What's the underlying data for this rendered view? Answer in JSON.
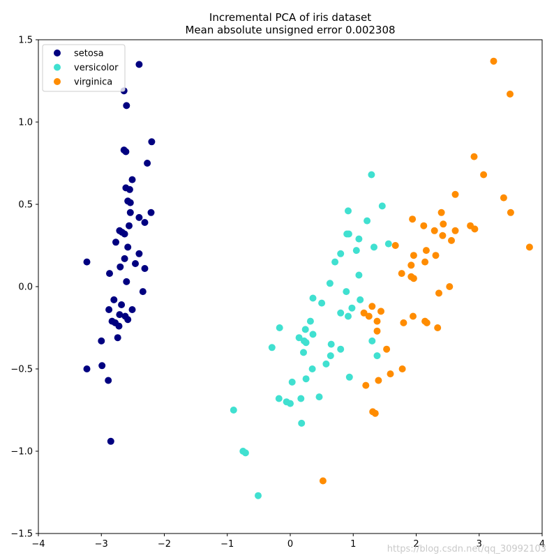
{
  "chart_data": {
    "type": "scatter",
    "title": "Incremental PCA of iris dataset",
    "subtitle": "Mean absolute unsigned error 0.002308",
    "xlabel": "",
    "ylabel": "",
    "xlim": [
      -4,
      4
    ],
    "ylim": [
      -1.5,
      1.5
    ],
    "xticks": [
      -4,
      -3,
      -2,
      -1,
      0,
      1,
      2,
      3,
      4
    ],
    "yticks": [
      1.5,
      1.0,
      0.5,
      0.0,
      -0.5,
      -1.0,
      -1.5
    ],
    "xtick_labels": [
      "−4",
      "−3",
      "−2",
      "−1",
      "0",
      "1",
      "2",
      "3",
      "4"
    ],
    "ytick_labels": [
      "1.5",
      "1.0",
      "0.5",
      "0.0",
      "−0.5",
      "−1.0",
      "−1.5"
    ],
    "grid": false,
    "legend_position": "top-left",
    "series": [
      {
        "name": "setosa",
        "color": "#000080",
        "points": [
          [
            -2.4,
            1.35
          ],
          [
            -2.64,
            1.19
          ],
          [
            -2.6,
            1.1
          ],
          [
            -2.64,
            0.83
          ],
          [
            -2.61,
            0.82
          ],
          [
            -2.2,
            0.88
          ],
          [
            -2.27,
            0.75
          ],
          [
            -2.51,
            0.65
          ],
          [
            -2.61,
            0.6
          ],
          [
            -2.55,
            0.59
          ],
          [
            -2.58,
            0.52
          ],
          [
            -2.54,
            0.51
          ],
          [
            -2.54,
            0.45
          ],
          [
            -2.21,
            0.45
          ],
          [
            -2.4,
            0.42
          ],
          [
            -2.31,
            0.39
          ],
          [
            -2.56,
            0.37
          ],
          [
            -2.71,
            0.34
          ],
          [
            -2.67,
            0.33
          ],
          [
            -2.63,
            0.32
          ],
          [
            -2.77,
            0.27
          ],
          [
            -2.58,
            0.24
          ],
          [
            -2.4,
            0.2
          ],
          [
            -3.23,
            0.15
          ],
          [
            -2.63,
            0.17
          ],
          [
            -2.46,
            0.14
          ],
          [
            -2.7,
            0.12
          ],
          [
            -2.31,
            0.11
          ],
          [
            -2.87,
            0.08
          ],
          [
            -2.6,
            0.03
          ],
          [
            -2.34,
            -0.03
          ],
          [
            -2.8,
            -0.08
          ],
          [
            -2.68,
            -0.11
          ],
          [
            -2.51,
            -0.14
          ],
          [
            -2.88,
            -0.14
          ],
          [
            -2.71,
            -0.17
          ],
          [
            -2.62,
            -0.18
          ],
          [
            -2.58,
            -0.2
          ],
          [
            -2.83,
            -0.21
          ],
          [
            -2.78,
            -0.22
          ],
          [
            -2.72,
            -0.24
          ],
          [
            -2.74,
            -0.31
          ],
          [
            -3.0,
            -0.33
          ],
          [
            -3.23,
            -0.5
          ],
          [
            -2.99,
            -0.48
          ],
          [
            -2.89,
            -0.57
          ],
          [
            -2.85,
            -0.94
          ]
        ]
      },
      {
        "name": "versicolor",
        "color": "#40E0D0",
        "points": [
          [
            1.29,
            0.68
          ],
          [
            1.46,
            0.49
          ],
          [
            0.92,
            0.46
          ],
          [
            1.22,
            0.4
          ],
          [
            0.9,
            0.32
          ],
          [
            0.93,
            0.32
          ],
          [
            1.09,
            0.29
          ],
          [
            1.56,
            0.26
          ],
          [
            1.33,
            0.24
          ],
          [
            1.05,
            0.22
          ],
          [
            0.8,
            0.2
          ],
          [
            0.71,
            0.15
          ],
          [
            1.09,
            0.07
          ],
          [
            0.63,
            0.02
          ],
          [
            0.5,
            -0.1
          ],
          [
            0.89,
            -0.03
          ],
          [
            1.11,
            -0.08
          ],
          [
            0.36,
            -0.07
          ],
          [
            0.98,
            -0.13
          ],
          [
            0.8,
            -0.16
          ],
          [
            0.92,
            -0.18
          ],
          [
            0.32,
            -0.21
          ],
          [
            -0.17,
            -0.25
          ],
          [
            0.24,
            -0.26
          ],
          [
            0.36,
            -0.29
          ],
          [
            0.14,
            -0.31
          ],
          [
            0.22,
            -0.33
          ],
          [
            0.25,
            -0.34
          ],
          [
            1.3,
            -0.33
          ],
          [
            0.65,
            -0.35
          ],
          [
            0.8,
            -0.38
          ],
          [
            -0.29,
            -0.37
          ],
          [
            0.21,
            -0.4
          ],
          [
            0.64,
            -0.42
          ],
          [
            1.38,
            -0.42
          ],
          [
            0.57,
            -0.47
          ],
          [
            0.35,
            -0.5
          ],
          [
            0.94,
            -0.55
          ],
          [
            0.25,
            -0.56
          ],
          [
            0.03,
            -0.58
          ],
          [
            -0.18,
            -0.68
          ],
          [
            -0.06,
            -0.7
          ],
          [
            0.0,
            -0.71
          ],
          [
            0.17,
            -0.68
          ],
          [
            0.46,
            -0.67
          ],
          [
            -0.9,
            -0.75
          ],
          [
            0.18,
            -0.83
          ],
          [
            -0.75,
            -1.0
          ],
          [
            -0.71,
            -1.01
          ],
          [
            -0.51,
            -1.27
          ]
        ]
      },
      {
        "name": "virginica",
        "color": "#FF8C00",
        "points": [
          [
            3.23,
            1.37
          ],
          [
            3.49,
            1.17
          ],
          [
            2.92,
            0.79
          ],
          [
            3.07,
            0.68
          ],
          [
            2.62,
            0.56
          ],
          [
            3.39,
            0.54
          ],
          [
            2.4,
            0.45
          ],
          [
            3.5,
            0.45
          ],
          [
            1.94,
            0.41
          ],
          [
            2.43,
            0.38
          ],
          [
            2.12,
            0.37
          ],
          [
            2.86,
            0.37
          ],
          [
            2.29,
            0.34
          ],
          [
            2.62,
            0.34
          ],
          [
            2.93,
            0.35
          ],
          [
            2.42,
            0.31
          ],
          [
            2.56,
            0.28
          ],
          [
            1.67,
            0.25
          ],
          [
            3.8,
            0.24
          ],
          [
            2.16,
            0.22
          ],
          [
            1.96,
            0.19
          ],
          [
            2.31,
            0.19
          ],
          [
            2.14,
            0.15
          ],
          [
            1.92,
            0.13
          ],
          [
            1.77,
            0.08
          ],
          [
            1.92,
            0.06
          ],
          [
            1.96,
            0.05
          ],
          [
            2.53,
            0.0
          ],
          [
            2.36,
            -0.04
          ],
          [
            1.3,
            -0.12
          ],
          [
            1.44,
            -0.15
          ],
          [
            1.17,
            -0.16
          ],
          [
            1.25,
            -0.18
          ],
          [
            1.38,
            -0.21
          ],
          [
            1.95,
            -0.18
          ],
          [
            2.14,
            -0.21
          ],
          [
            2.17,
            -0.22
          ],
          [
            1.8,
            -0.22
          ],
          [
            2.34,
            -0.25
          ],
          [
            1.38,
            -0.27
          ],
          [
            1.53,
            -0.38
          ],
          [
            1.78,
            -0.5
          ],
          [
            1.59,
            -0.53
          ],
          [
            1.4,
            -0.57
          ],
          [
            1.2,
            -0.6
          ],
          [
            1.31,
            -0.76
          ],
          [
            1.35,
            -0.77
          ],
          [
            0.52,
            -1.18
          ]
        ]
      }
    ]
  },
  "watermark": "https://blog.csdn.net/qq_30992103"
}
